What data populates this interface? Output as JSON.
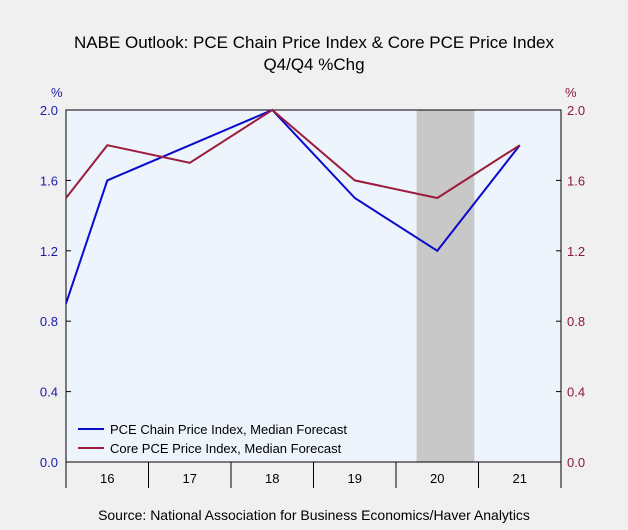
{
  "chart_data": {
    "type": "line",
    "title": "NABE Outlook: PCE Chain Price Index & Core PCE Price Index",
    "subtitle": "Q4/Q4 %Chg",
    "ylabel_left": "%",
    "ylabel_right": "%",
    "x_tick_labels": [
      "16",
      "17",
      "18",
      "19",
      "20",
      "21"
    ],
    "x_years": [
      2016,
      2017,
      2018,
      2019,
      2020,
      2021
    ],
    "ylim": [
      0.0,
      2.0
    ],
    "y_ticks": [
      "0.0",
      "0.4",
      "0.8",
      "1.2",
      "1.6",
      "2.0"
    ],
    "shaded_region": {
      "from": 2019.75,
      "to": 2020.45
    },
    "legend_position": "bottom-left",
    "series": [
      {
        "name": "PCE Chain Price Index, Median Forecast",
        "color": "#0a0acc",
        "x": [
          2015.5,
          2016,
          2018,
          2019,
          2020,
          2021
        ],
        "values": [
          0.9,
          1.6,
          2.0,
          1.5,
          1.2,
          1.8
        ]
      },
      {
        "name": "Core PCE Price Index, Median Forecast",
        "color": "#9b1c3c",
        "x": [
          2015.5,
          2016,
          2017,
          2018,
          2019,
          2020,
          2021
        ],
        "values": [
          1.5,
          1.8,
          1.7,
          2.0,
          1.6,
          1.5,
          1.8
        ]
      }
    ],
    "source": "Source:  National Association for Business Economics/Haver Analytics"
  },
  "colors": {
    "left_axis": "#1a1aaa",
    "right_axis": "#8b1a3a",
    "plot_bg": "#eef4fc",
    "shade": "#c8c8c8"
  }
}
